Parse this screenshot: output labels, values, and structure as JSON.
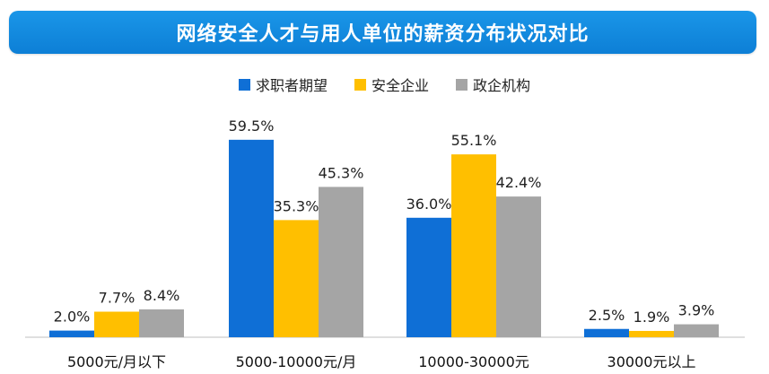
{
  "title": "网络安全人才与用人单位的薪资分布状况对比",
  "colors": {
    "title_bg": "#0d7fd6",
    "axis": "#bfbfbf"
  },
  "chart_data": {
    "type": "bar",
    "categories": [
      "5000元/月以下",
      "5000-10000元/月",
      "10000-30000元",
      "30000元以上"
    ],
    "series": [
      {
        "name": "求职者期望",
        "color": "#0f6fd6",
        "values": [
          2.0,
          59.5,
          36.0,
          2.5
        ]
      },
      {
        "name": "安全企业",
        "color": "#ffbf00",
        "values": [
          7.7,
          35.3,
          55.1,
          1.9
        ]
      },
      {
        "name": "政企机构",
        "color": "#a5a5a5",
        "values": [
          8.4,
          45.3,
          42.4,
          3.9
        ]
      }
    ],
    "value_labels": [
      [
        "2.0%",
        "59.5%",
        "36.0%",
        "2.5%"
      ],
      [
        "7.7%",
        "35.3%",
        "55.1%",
        "1.9%"
      ],
      [
        "8.4%",
        "45.3%",
        "42.4%",
        "3.9%"
      ]
    ],
    "ylim": [
      0,
      60
    ],
    "legend_position": "top-center",
    "grid": false
  }
}
